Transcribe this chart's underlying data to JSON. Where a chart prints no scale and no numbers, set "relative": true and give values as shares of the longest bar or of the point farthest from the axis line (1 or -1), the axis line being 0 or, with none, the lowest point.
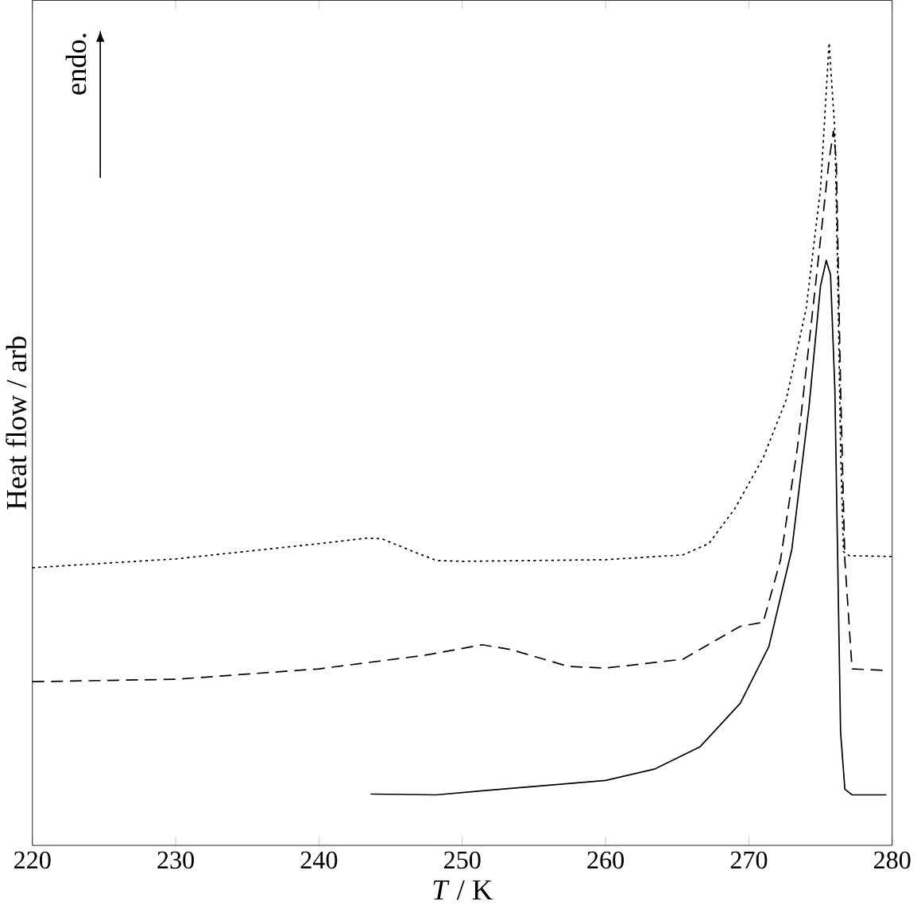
{
  "chart_data": {
    "type": "line",
    "relative": true,
    "xlabel": "*T* / K",
    "ylabel": "Heat flow / arb",
    "xlim": [
      220,
      280
    ],
    "xticks": [
      220,
      230,
      240,
      250,
      260,
      270,
      280
    ],
    "annotations": [
      "endo."
    ],
    "series": [
      {
        "color": "#000000",
        "line_style": "dotted",
        "x": [
          220,
          230,
          240,
          243.4,
          244.4,
          246.6,
          248.2,
          250,
          260,
          265.4,
          267.2,
          269,
          271,
          272.6,
          274,
          275,
          275.6,
          276,
          276.2,
          276.4,
          276.6,
          277,
          280
        ],
        "values": [
          0.346,
          0.357,
          0.376,
          0.383,
          0.382,
          0.366,
          0.355,
          0.354,
          0.356,
          0.362,
          0.376,
          0.419,
          0.483,
          0.555,
          0.669,
          0.818,
          1.0,
          0.89,
          0.711,
          0.497,
          0.366,
          0.361,
          0.36
        ]
      },
      {
        "color": "#000000",
        "line_style": "dashed",
        "x": [
          220,
          230,
          240,
          247.4,
          251.4,
          253.4,
          257.4,
          260,
          265.4,
          269.4,
          271,
          272.2,
          273.4,
          274.6,
          275.6,
          275.9,
          276.1,
          276.4,
          276.7,
          277.2,
          279.6
        ],
        "values": [
          0.204,
          0.207,
          0.22,
          0.237,
          0.25,
          0.244,
          0.223,
          0.221,
          0.232,
          0.273,
          0.278,
          0.355,
          0.497,
          0.69,
          0.854,
          0.89,
          0.854,
          0.569,
          0.355,
          0.22,
          0.218
        ]
      },
      {
        "color": "#000000",
        "line_style": "solid",
        "x": [
          243.6,
          248.2,
          251.4,
          260,
          263.4,
          266.6,
          269.4,
          271.4,
          273,
          274.2,
          275,
          275.4,
          275.7,
          276,
          276.2,
          276.4,
          276.7,
          277.2,
          279.6
        ],
        "values": [
          0.064,
          0.063,
          0.068,
          0.081,
          0.095,
          0.123,
          0.177,
          0.248,
          0.369,
          0.547,
          0.697,
          0.729,
          0.711,
          0.569,
          0.355,
          0.141,
          0.07,
          0.063,
          0.063
        ]
      }
    ]
  }
}
